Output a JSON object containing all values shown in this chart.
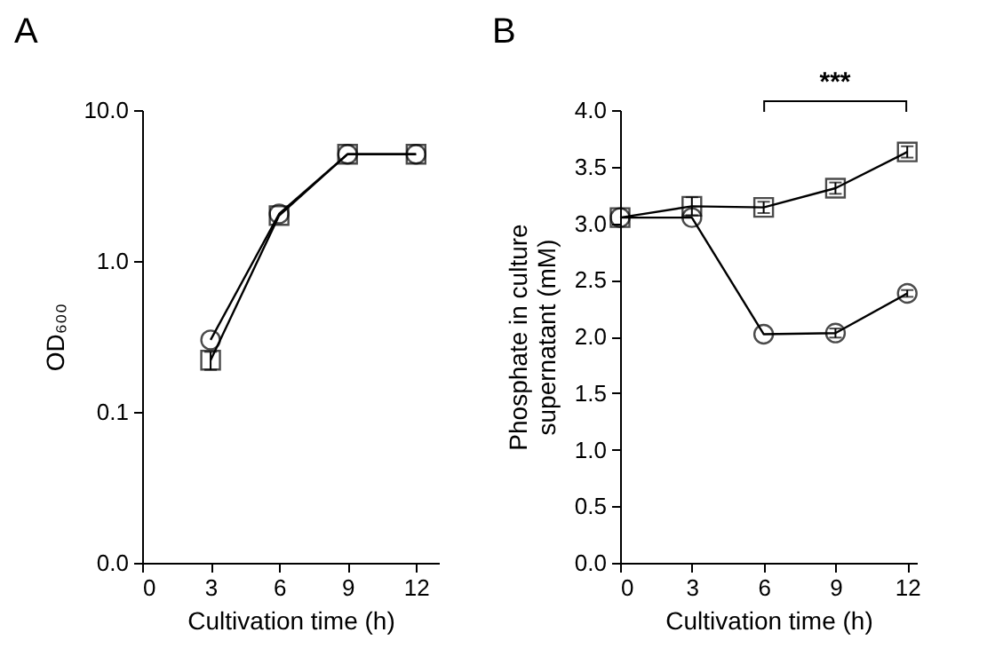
{
  "chart_data": [
    {
      "type": "line",
      "title": "A",
      "xlabel": "Cultivation time (h)",
      "ylabel": "OD₆₀₀",
      "x": [
        3,
        6,
        9,
        12
      ],
      "xlim": [
        0,
        13
      ],
      "xticks": [
        0,
        3,
        6,
        9,
        12
      ],
      "ylim": [
        0.01,
        10
      ],
      "yticks": [
        {
          "value": 0.01,
          "label": "0.0"
        },
        {
          "value": 0.1,
          "label": "0.1"
        },
        {
          "value": 1,
          "label": "1.0"
        },
        {
          "value": 10,
          "label": "10.0"
        }
      ],
      "log": "y",
      "grid": false,
      "line_style": "solid",
      "series": [
        {
          "color": "#000000",
          "marker": "circle",
          "values": [
            0.3,
            2.05,
            5.1,
            5.1
          ]
        },
        {
          "color": "#000000",
          "marker": "square",
          "values": [
            0.22,
            2.0,
            5.1,
            5.1
          ],
          "errors": [
            0.03,
            null,
            null,
            null
          ]
        }
      ]
    },
    {
      "type": "line",
      "title": "B",
      "xlabel": "Cultivation time (h)",
      "ylabel": "Phosphate in culture supernatant (mM)",
      "x": [
        0,
        3,
        6,
        9,
        12
      ],
      "xlim": [
        0,
        12.4
      ],
      "xticks": [
        0,
        3,
        6,
        9,
        12
      ],
      "ylim": [
        0,
        4
      ],
      "yticks": [
        {
          "value": 0,
          "label": "0.0"
        },
        0.5,
        {
          "value": 1,
          "label": "1.0"
        },
        1.5,
        {
          "value": 2,
          "label": "2.0"
        },
        2.5,
        {
          "value": 3,
          "label": "3.0"
        },
        3.5,
        {
          "value": 4,
          "label": "4.0"
        }
      ],
      "grid": false,
      "line_style": "solid",
      "annotations": [
        "***"
      ],
      "series": [
        {
          "color": "#000000",
          "marker": "circle",
          "values": [
            3.05,
            3.05,
            2.02,
            2.03,
            2.38
          ],
          "errors": [
            null,
            null,
            null,
            0.04,
            0.03
          ]
        },
        {
          "color": "#000000",
          "marker": "square",
          "values": [
            3.05,
            3.15,
            3.14,
            3.31,
            3.63
          ],
          "errors": [
            null,
            0.08,
            0.05,
            0.05,
            0.05
          ]
        }
      ]
    }
  ]
}
